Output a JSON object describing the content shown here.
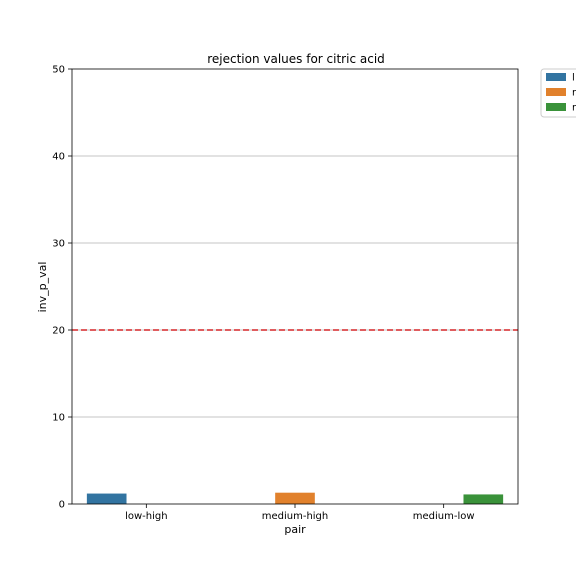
{
  "chart_data": {
    "type": "bar",
    "title": "rejection values for citric acid",
    "xlabel": "pair",
    "ylabel": "inv_p_val",
    "categories": [
      "low-high",
      "medium-high",
      "medium-low"
    ],
    "series": [
      {
        "name": "l",
        "values": [
          1.2,
          null,
          null
        ]
      },
      {
        "name": "r",
        "values": [
          null,
          1.3,
          null
        ]
      },
      {
        "name": "r",
        "values": [
          null,
          null,
          1.1
        ]
      }
    ],
    "ylim": [
      0,
      50
    ],
    "yticks": [
      "0",
      "10",
      "20",
      "30",
      "40",
      "50"
    ],
    "threshold": 20,
    "grid": "horizontal",
    "legend_position": "outside-top-right",
    "colors": {
      "series": [
        "#3274a1",
        "#e1812c",
        "#3a923a"
      ],
      "threshold": "#d62728",
      "grid": "#b0b0b0"
    }
  }
}
